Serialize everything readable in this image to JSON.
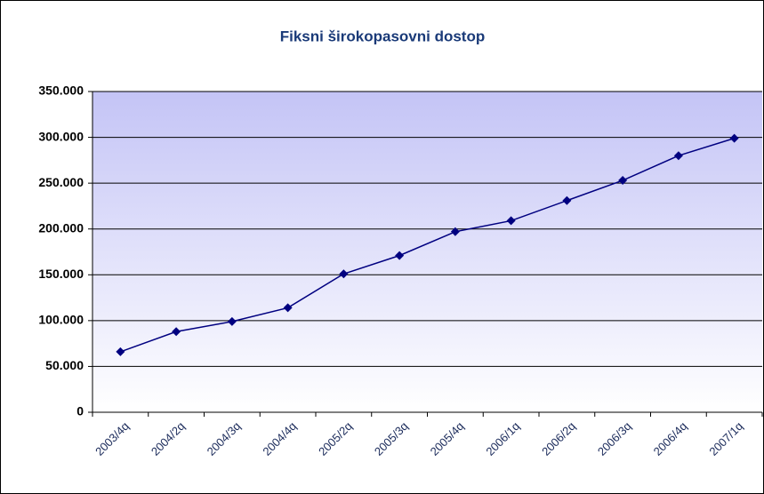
{
  "chart_data": {
    "type": "line",
    "title": "Fiksni širokopasovni dostop",
    "categories": [
      "2003/4q",
      "2004/2q",
      "2004/3q",
      "2004/4q",
      "2005/2q",
      "2005/3q",
      "2005/4q",
      "2006/1q",
      "2006/2q",
      "2006/3q",
      "2006/4q",
      "2007/1q"
    ],
    "series": [
      {
        "name": "Fiksni širokopasovni dostop",
        "color": "#000080",
        "values": [
          66000,
          88000,
          99000,
          114000,
          151000,
          171000,
          197000,
          209000,
          231000,
          253000,
          280000,
          299000
        ]
      }
    ],
    "ylim": [
      0,
      350000
    ],
    "yticks": [
      0,
      {
        "value": 50000,
        "label": "50.000"
      },
      {
        "value": 100000,
        "label": "100.000"
      },
      {
        "value": 150000,
        "label": "150.000"
      },
      {
        "value": 200000,
        "label": "200.000"
      },
      {
        "value": 250000,
        "label": "250.000"
      },
      {
        "value": 300000,
        "label": "300.000"
      },
      {
        "value": 350000,
        "label": "350.000"
      }
    ],
    "grid": true
  }
}
